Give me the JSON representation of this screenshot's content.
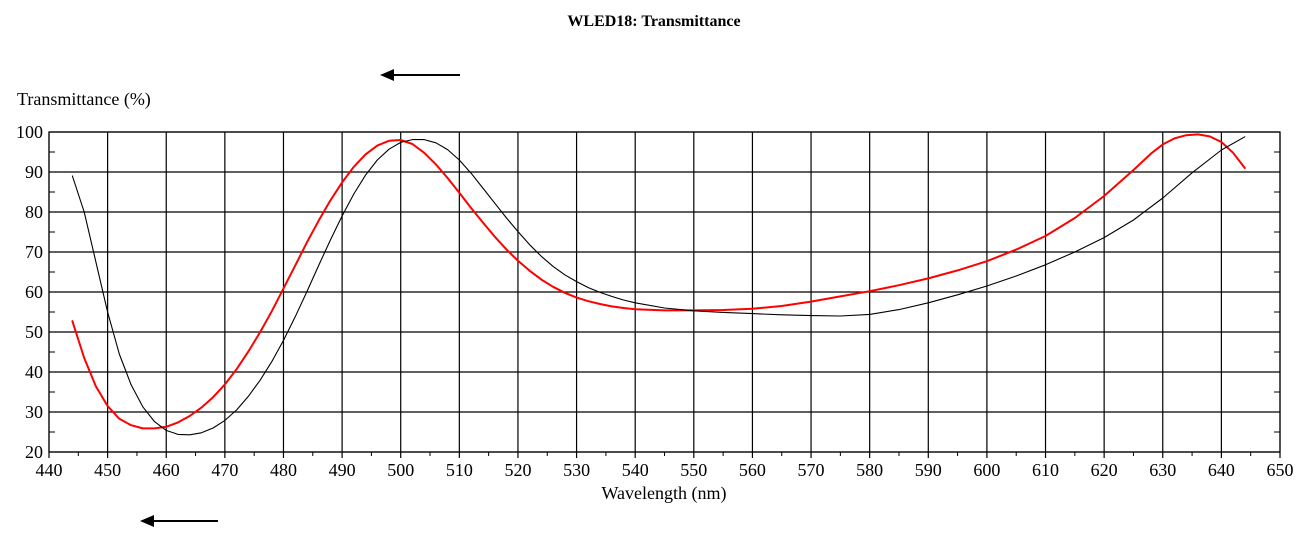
{
  "chart_data": {
    "type": "line",
    "title": "WLED18: Transmittance",
    "xlabel": "Wavelength (nm)",
    "ylabel": "Transmittance (%)",
    "xlim": [
      440,
      650
    ],
    "ylim": [
      20,
      100
    ],
    "x_ticks": [
      440,
      450,
      460,
      470,
      480,
      490,
      500,
      510,
      520,
      530,
      540,
      550,
      560,
      570,
      580,
      590,
      600,
      610,
      620,
      630,
      640,
      650
    ],
    "y_ticks": [
      20,
      30,
      40,
      50,
      60,
      70,
      80,
      90,
      100
    ],
    "grid": true,
    "legend": "none",
    "series": [
      {
        "color": "#ff0000",
        "x": [
          444,
          446,
          448,
          450,
          452,
          454,
          456,
          458,
          460,
          462,
          464,
          466,
          468,
          470,
          472,
          474,
          476,
          478,
          480,
          482,
          484,
          486,
          488,
          490,
          492,
          494,
          496,
          498,
          500,
          502,
          504,
          506,
          508,
          510,
          512,
          514,
          516,
          518,
          520,
          522,
          524,
          526,
          528,
          530,
          532,
          534,
          536,
          538,
          540,
          545,
          550,
          555,
          560,
          565,
          570,
          575,
          580,
          585,
          590,
          595,
          600,
          605,
          610,
          615,
          620,
          625,
          628,
          630,
          632,
          634,
          636,
          638,
          640,
          642,
          644
        ],
        "y": [
          52.7,
          43.5,
          36.4,
          31.5,
          28.3,
          26.7,
          25.9,
          25.9,
          26.3,
          27.4,
          29.0,
          31.1,
          33.7,
          36.9,
          40.7,
          45.1,
          49.9,
          55.2,
          60.9,
          66.6,
          72.4,
          77.8,
          82.9,
          87.4,
          91.3,
          94.4,
          96.6,
          97.8,
          98.0,
          97.0,
          94.8,
          91.9,
          88.5,
          84.8,
          81.0,
          77.4,
          73.9,
          70.7,
          67.8,
          65.3,
          63.1,
          61.3,
          59.8,
          58.6,
          57.7,
          57.0,
          56.4,
          56.0,
          55.7,
          55.4,
          55.4,
          55.5,
          55.8,
          56.5,
          57.6,
          58.9,
          60.2,
          61.7,
          63.4,
          65.4,
          67.7,
          70.6,
          74.0,
          78.5,
          84.0,
          90.5,
          94.6,
          96.9,
          98.4,
          99.2,
          99.4,
          98.9,
          97.5,
          94.8,
          91.0
        ]
      },
      {
        "color": "#000000",
        "x": [
          444,
          446,
          448,
          450,
          452,
          454,
          456,
          458,
          460,
          462,
          464,
          466,
          468,
          470,
          472,
          474,
          476,
          478,
          480,
          482,
          484,
          486,
          488,
          490,
          492,
          494,
          496,
          498,
          500,
          502,
          504,
          506,
          508,
          510,
          512,
          514,
          516,
          518,
          520,
          522,
          524,
          526,
          528,
          530,
          532,
          534,
          536,
          538,
          540,
          545,
          550,
          555,
          560,
          565,
          570,
          575,
          580,
          585,
          590,
          595,
          600,
          605,
          610,
          615,
          620,
          625,
          630,
          635,
          640,
          644
        ],
        "y": [
          89.0,
          80.0,
          67.5,
          55.0,
          44.5,
          36.8,
          31.3,
          27.6,
          25.4,
          24.4,
          24.3,
          24.8,
          26.0,
          27.9,
          30.5,
          33.9,
          37.9,
          42.6,
          47.9,
          53.8,
          60.1,
          66.6,
          73.0,
          79.0,
          84.5,
          89.2,
          93.0,
          95.7,
          97.4,
          98.1,
          98.1,
          97.3,
          95.6,
          93.0,
          89.7,
          86.0,
          82.3,
          78.6,
          75.1,
          71.8,
          68.9,
          66.4,
          64.3,
          62.6,
          61.1,
          59.9,
          58.9,
          58.0,
          57.3,
          56.0,
          55.3,
          54.9,
          54.6,
          54.3,
          54.1,
          54.0,
          54.4,
          55.6,
          57.3,
          59.3,
          61.5,
          64.0,
          66.8,
          70.0,
          73.6,
          78.0,
          83.5,
          89.8,
          95.5,
          98.8
        ]
      }
    ]
  }
}
